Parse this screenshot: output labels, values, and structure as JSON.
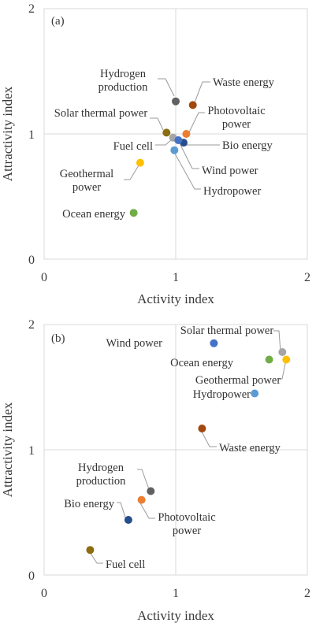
{
  "chart_data": [
    {
      "type": "scatter",
      "panel_label": "(a)",
      "xlabel": "Activity index",
      "ylabel": "Attractivity index",
      "xlim": [
        0,
        2
      ],
      "ylim": [
        0,
        2
      ],
      "x_ticks": [
        "0",
        "1",
        "2"
      ],
      "y_ticks": [
        "0",
        "1",
        "2"
      ],
      "grid": "reference lines at x=1 and y=1",
      "points": [
        {
          "name": "Hydrogen production",
          "label_lines": [
            "Hydrogen",
            "production"
          ],
          "x": 1.0,
          "y": 1.26,
          "color": "#616161"
        },
        {
          "name": "Waste energy",
          "label_lines": [
            "Waste energy"
          ],
          "x": 1.13,
          "y": 1.23,
          "color": "#a0480e"
        },
        {
          "name": "Photovoltaic power",
          "label_lines": [
            "Photovoltaic",
            "power"
          ],
          "x": 1.08,
          "y": 1.0,
          "color": "#ed7d31"
        },
        {
          "name": "Solar thermal power",
          "label_lines": [
            "Solar thermal power"
          ],
          "x": 0.93,
          "y": 1.01,
          "color": "#8b6d12"
        },
        {
          "name": "Fuel cell",
          "label_lines": [
            "Fuel cell"
          ],
          "x": 0.98,
          "y": 0.97,
          "color": "#a5a5a5"
        },
        {
          "name": "Bio energy",
          "label_lines": [
            "Bio energy"
          ],
          "x": 1.06,
          "y": 0.93,
          "color": "#264d8c"
        },
        {
          "name": "Wind power",
          "label_lines": [
            "Wind power"
          ],
          "x": 1.02,
          "y": 0.95,
          "color": "#4472c4"
        },
        {
          "name": "Hydropower",
          "label_lines": [
            "Hydropower"
          ],
          "x": 0.99,
          "y": 0.87,
          "color": "#5b9bd5"
        },
        {
          "name": "Geothermal power",
          "label_lines": [
            "Geothermal",
            "power"
          ],
          "x": 0.73,
          "y": 0.77,
          "color": "#ffc000"
        },
        {
          "name": "Ocean energy",
          "label_lines": [
            "Ocean energy"
          ],
          "x": 0.68,
          "y": 0.37,
          "color": "#70ad47"
        }
      ]
    },
    {
      "type": "scatter",
      "panel_label": "(b)",
      "xlabel": "Activity index",
      "ylabel": "Attractivity index",
      "xlim": [
        0,
        2
      ],
      "ylim": [
        0,
        2
      ],
      "x_ticks": [
        "0",
        "1",
        "2"
      ],
      "y_ticks": [
        "0",
        "1",
        "2"
      ],
      "grid": "reference lines at x=1 and y=1",
      "points": [
        {
          "name": "Wind power",
          "label_lines": [
            "Wind power"
          ],
          "x": 1.29,
          "y": 1.85,
          "color": "#4472c4"
        },
        {
          "name": "Solar thermal power",
          "label_lines": [
            "Solar thermal power"
          ],
          "x": 1.81,
          "y": 1.78,
          "color": "#a5a5a5"
        },
        {
          "name": "Ocean energy",
          "label_lines": [
            "Ocean energy"
          ],
          "x": 1.71,
          "y": 1.72,
          "color": "#70ad47"
        },
        {
          "name": "Geothermal power",
          "label_lines": [
            "Geothermal power"
          ],
          "x": 1.84,
          "y": 1.72,
          "color": "#ffc000"
        },
        {
          "name": "Hydropower",
          "label_lines": [
            "Hydropower"
          ],
          "x": 1.6,
          "y": 1.45,
          "color": "#5b9bd5"
        },
        {
          "name": "Waste energy",
          "label_lines": [
            "Waste energy"
          ],
          "x": 1.2,
          "y": 1.17,
          "color": "#a0480e"
        },
        {
          "name": "Hydrogen production",
          "label_lines": [
            "Hydrogen",
            "production"
          ],
          "x": 0.81,
          "y": 0.67,
          "color": "#616161"
        },
        {
          "name": "Photovoltaic power",
          "label_lines": [
            "Photovoltaic",
            "power"
          ],
          "x": 0.74,
          "y": 0.6,
          "color": "#ed7d31"
        },
        {
          "name": "Bio energy",
          "label_lines": [
            "Bio energy"
          ],
          "x": 0.64,
          "y": 0.44,
          "color": "#264d8c"
        },
        {
          "name": "Fuel cell",
          "label_lines": [
            "Fuel cell"
          ],
          "x": 0.35,
          "y": 0.2,
          "color": "#8b6d12"
        }
      ]
    }
  ]
}
